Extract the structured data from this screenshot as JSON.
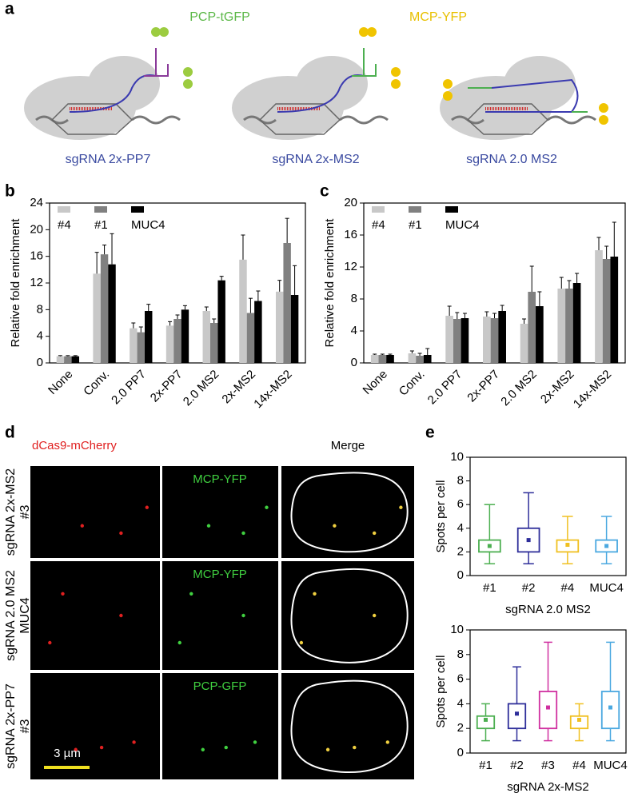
{
  "panel_labels": [
    "a",
    "b",
    "c",
    "d",
    "e"
  ],
  "diagram": {
    "proteins": [
      "PCP-tGFP",
      "MCP-YFP"
    ],
    "captions": [
      "sgRNA 2x-PP7",
      "sgRNA 2x-MS2",
      "sgRNA 2.0 MS2"
    ]
  },
  "chart_data": [
    {
      "type": "bar",
      "ylabel": "Relative fold enrichment",
      "categories": [
        "None",
        "Conv.",
        "2.0 PP7",
        "2x-PP7",
        "2.0 MS2",
        "2x-MS2",
        "14x-MS2"
      ],
      "series": [
        {
          "name": "#4",
          "color": "#c8c8c8",
          "values": [
            1.0,
            13.4,
            5.2,
            5.6,
            7.8,
            15.5,
            10.7
          ],
          "errors": [
            0.1,
            3.2,
            0.8,
            0.6,
            0.6,
            3.7,
            1.7
          ]
        },
        {
          "name": "#1",
          "color": "#808080",
          "values": [
            1.0,
            16.3,
            4.6,
            6.6,
            6.0,
            7.5,
            18.0
          ],
          "errors": [
            0.1,
            1.4,
            0.8,
            0.6,
            0.6,
            2.2,
            3.7
          ]
        },
        {
          "name": "MUC4",
          "color": "#000000",
          "values": [
            1.0,
            14.8,
            7.8,
            8.0,
            12.4,
            9.3,
            10.2
          ],
          "errors": [
            0.1,
            4.6,
            1.0,
            0.6,
            0.6,
            1.5,
            4.4
          ]
        }
      ],
      "ylim": [
        0,
        24
      ],
      "yticks": [
        0,
        4,
        8,
        12,
        16,
        20,
        24
      ],
      "legend": "upper left"
    },
    {
      "type": "bar",
      "ylabel": "Relative fold enrichment",
      "categories": [
        "None",
        "Conv.",
        "2.0 PP7",
        "2x-PP7",
        "2.0 MS2",
        "2x-MS2",
        "14x-MS2"
      ],
      "series": [
        {
          "name": "#4",
          "color": "#c8c8c8",
          "values": [
            1.0,
            1.2,
            5.9,
            5.8,
            4.9,
            9.3,
            14.1
          ],
          "errors": [
            0.1,
            0.3,
            1.2,
            0.6,
            0.6,
            1.4,
            1.6
          ]
        },
        {
          "name": "#1",
          "color": "#808080",
          "values": [
            1.0,
            0.9,
            5.5,
            5.6,
            8.9,
            9.3,
            13.0
          ],
          "errors": [
            0.1,
            0.3,
            0.8,
            0.6,
            3.2,
            1.0,
            1.6
          ]
        },
        {
          "name": "MUC4",
          "color": "#000000",
          "values": [
            1.0,
            1.0,
            5.6,
            6.5,
            7.1,
            10.0,
            13.3
          ],
          "errors": [
            0.1,
            0.8,
            0.6,
            0.7,
            1.8,
            1.2,
            4.3
          ]
        }
      ],
      "ylim": [
        0,
        20
      ],
      "yticks": [
        0,
        4,
        8,
        12,
        16,
        20
      ],
      "legend": "upper left"
    },
    {
      "type": "box",
      "ylabel": "Spots per cell",
      "xlabel": "sgRNA 2.0 MS2",
      "categories": [
        "#1",
        "#2",
        "#4",
        "MUC4"
      ],
      "colors": [
        "#4caf50",
        "#2e2e9a",
        "#f0c020",
        "#4aa8e0"
      ],
      "whisker_low": [
        1,
        1,
        1,
        1
      ],
      "q1": [
        2,
        2,
        2,
        2
      ],
      "q3": [
        3,
        4,
        3,
        3
      ],
      "whisker_high": [
        6,
        7,
        5,
        5
      ],
      "mean": [
        2.5,
        3.0,
        2.6,
        2.5
      ],
      "ylim": [
        0,
        10
      ],
      "yticks": [
        0,
        2,
        4,
        6,
        8,
        10
      ]
    },
    {
      "type": "box",
      "ylabel": "Spots per cell",
      "xlabel": "sgRNA 2x-MS2",
      "categories": [
        "#1",
        "#2",
        "#3",
        "#4",
        "MUC4"
      ],
      "colors": [
        "#4caf50",
        "#2e2e9a",
        "#d030a0",
        "#f0c020",
        "#4aa8e0"
      ],
      "whisker_low": [
        1,
        1,
        1,
        1,
        1
      ],
      "q1": [
        2,
        2,
        2,
        2,
        2
      ],
      "q3": [
        3,
        4,
        5,
        3,
        5
      ],
      "whisker_high": [
        4,
        7,
        9,
        4,
        9
      ],
      "mean": [
        2.7,
        3.2,
        3.7,
        2.7,
        3.7
      ],
      "ylim": [
        0,
        10
      ],
      "yticks": [
        0,
        2,
        4,
        6,
        8,
        10
      ]
    }
  ],
  "microscopy": {
    "channels": [
      "dCas9-mCherry",
      "Merge"
    ],
    "rows": [
      {
        "label": "sgRNA 2x-MS2",
        "sublabel": "#3",
        "marker": "MCP-YFP"
      },
      {
        "label": "sgRNA 2.0 MS2",
        "sublabel": "MUC4",
        "marker": "MCP-YFP"
      },
      {
        "label": "sgRNA 2x-PP7",
        "sublabel": "#3",
        "marker": "PCP-GFP"
      }
    ],
    "scale_bar": "3 µm"
  }
}
